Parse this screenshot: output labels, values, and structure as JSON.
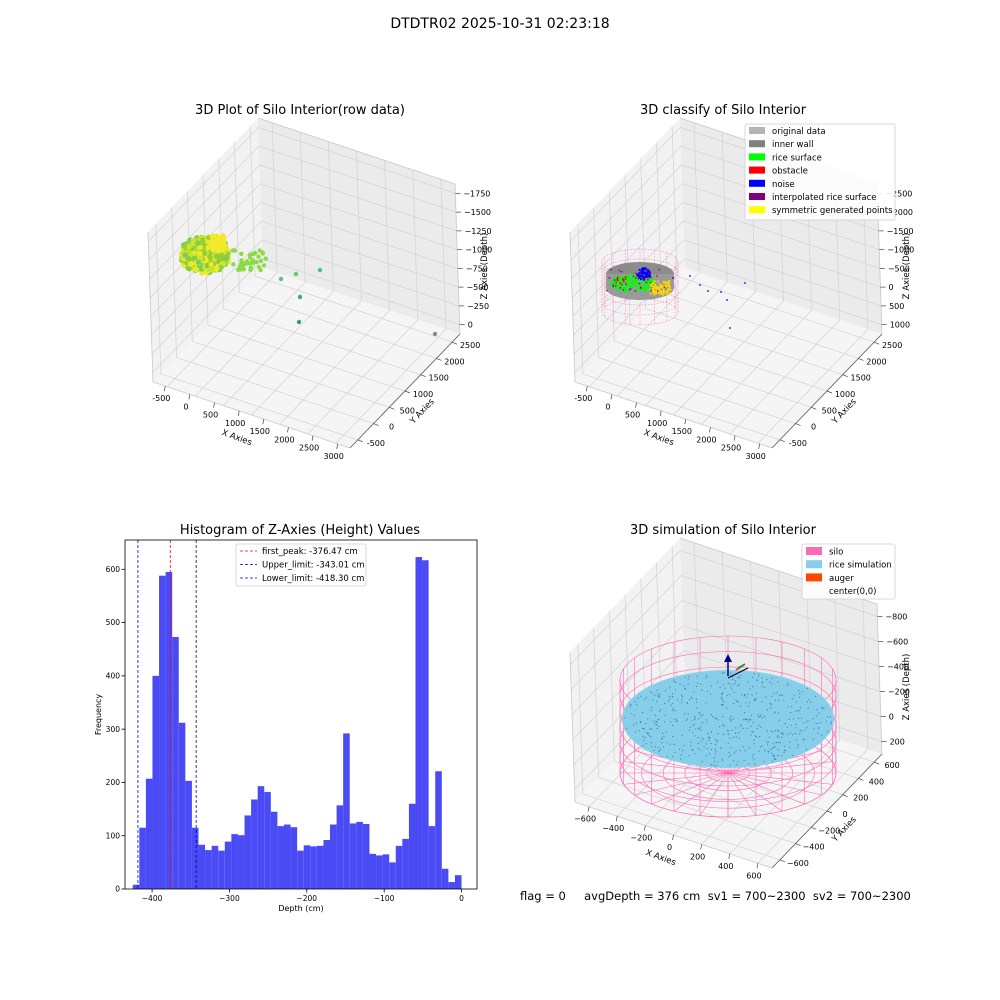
{
  "suptitle": "DTDTR02 2025-10-31 02:23:18",
  "info_text": "flag = 0     avgDepth = 376 cm  sv1 = 700~2300  sv2 = 700~2300",
  "chart_data": [
    {
      "type": "scatter",
      "id": "raw",
      "title": "3D Plot of Silo Interior(row data)",
      "xlabel": "X Axies",
      "ylabel": "Y Axies",
      "zlabel": "Z Axies (Depth)",
      "x_ticks": [
        "-500",
        "0",
        "500",
        "1000",
        "1500",
        "2000",
        "2500",
        "3000"
      ],
      "y_ticks": [
        "-500",
        "0",
        "500",
        "1000",
        "1500",
        "2000",
        "2500"
      ],
      "z_ticks": [
        "0",
        "−250",
        "−500",
        "−750",
        "−1000",
        "−1250",
        "−1500",
        "−1750"
      ],
      "cluster": {
        "x_range": [
          -500,
          300
        ],
        "y_range": [
          -300,
          300
        ],
        "z_range": [
          -500,
          -300
        ],
        "colors": [
          "#9acd32",
          "#c8e630",
          "#eaea2a",
          "#7ccd50"
        ]
      },
      "outliers": [
        {
          "x": 600,
          "y": 200,
          "z": -700,
          "color": "#5fc877"
        },
        {
          "x": 900,
          "y": 300,
          "z": -850,
          "color": "#58c382"
        },
        {
          "x": 1100,
          "y": 600,
          "z": -800,
          "color": "#4ebc86"
        },
        {
          "x": 1050,
          "y": 450,
          "z": -1100,
          "color": "#3aa88a"
        },
        {
          "x": 1150,
          "y": 200,
          "z": -1500,
          "color": "#2e9b86"
        },
        {
          "x": 2500,
          "y": 2500,
          "z": -1750,
          "color": "#7b8f8b"
        }
      ]
    },
    {
      "type": "scatter",
      "id": "classify",
      "title": "3D classify of Silo Interior",
      "xlabel": "X Axies",
      "ylabel": "Y Axies",
      "zlabel": "Z Axies (Depth)",
      "x_ticks": [
        "-500",
        "0",
        "500",
        "1000",
        "1500",
        "2000",
        "2500",
        "3000"
      ],
      "y_ticks": [
        "-500",
        "0",
        "500",
        "1000",
        "1500",
        "2000",
        "2500"
      ],
      "z_ticks": [
        "1000",
        "500",
        "0",
        "−500",
        "−1000",
        "−1500",
        "−2000",
        "−2500"
      ],
      "legend": [
        {
          "label": "original data",
          "color": "#b4b4b4"
        },
        {
          "label": "inner wall",
          "color": "#808080"
        },
        {
          "label": "rice surface",
          "color": "#00ff00"
        },
        {
          "label": "obstacle",
          "color": "#ff0000"
        },
        {
          "label": "noise",
          "color": "#0000ff"
        },
        {
          "label": "interpolated rice surface",
          "color": "#800080"
        },
        {
          "label": "symmetric generated points",
          "color": "#ffff00"
        }
      ],
      "legend_position": "upper right"
    },
    {
      "type": "bar",
      "id": "hist",
      "title": "Histogram of Z-Axies (Height) Values",
      "xlabel": "Depth (cm)",
      "ylabel": "Frequency",
      "xlim": [
        -435,
        20
      ],
      "ylim": [
        0,
        655
      ],
      "x_ticks": [
        -400,
        -300,
        -200,
        -100,
        0
      ],
      "y_ticks": [
        0,
        100,
        200,
        300,
        400,
        500,
        600
      ],
      "bin_start": -425,
      "bin_width": 8.5,
      "bar_color": "#4b4bf5",
      "values": [
        8,
        115,
        207,
        400,
        588,
        595,
        473,
        312,
        203,
        115,
        83,
        73,
        81,
        72,
        89,
        103,
        101,
        138,
        168,
        193,
        182,
        145,
        118,
        121,
        116,
        72,
        82,
        80,
        81,
        92,
        121,
        157,
        292,
        123,
        126,
        122,
        66,
        63,
        65,
        50,
        81,
        94,
        160,
        623,
        617,
        118,
        221,
        38,
        13,
        26
      ],
      "vlines": [
        {
          "label": "first_peak: -376.47 cm",
          "x": -376.47,
          "color": "#ff0000"
        },
        {
          "label": "Upper_limit: -343.01 cm",
          "x": -343.01,
          "color": "#00008b"
        },
        {
          "label": "Lower_limit: -418.30 cm",
          "x": -418.3,
          "color": "#0000ff"
        }
      ],
      "legend_position": "upper center"
    },
    {
      "type": "scatter",
      "id": "sim",
      "title": "3D simulation of Silo Interior",
      "xlabel": "X Axies",
      "ylabel": "Y Axies",
      "zlabel": "Z Axies (Depth)",
      "x_ticks": [
        "−600",
        "−400",
        "−200",
        "0",
        "200",
        "400",
        "600"
      ],
      "y_ticks": [
        "−600",
        "−400",
        "−200",
        "0",
        "200",
        "400",
        "600"
      ],
      "z_ticks": [
        "200",
        "0",
        "−200",
        "−400",
        "−600",
        "−800"
      ],
      "legend": [
        {
          "label": "silo",
          "color": "#ff69b4"
        },
        {
          "label": "rice simulation",
          "color": "#87ceeb"
        },
        {
          "label": "auger",
          "color": "#ff4500"
        },
        {
          "label": "center(0,0)",
          "color": ""
        }
      ],
      "legend_position": "upper right"
    }
  ]
}
